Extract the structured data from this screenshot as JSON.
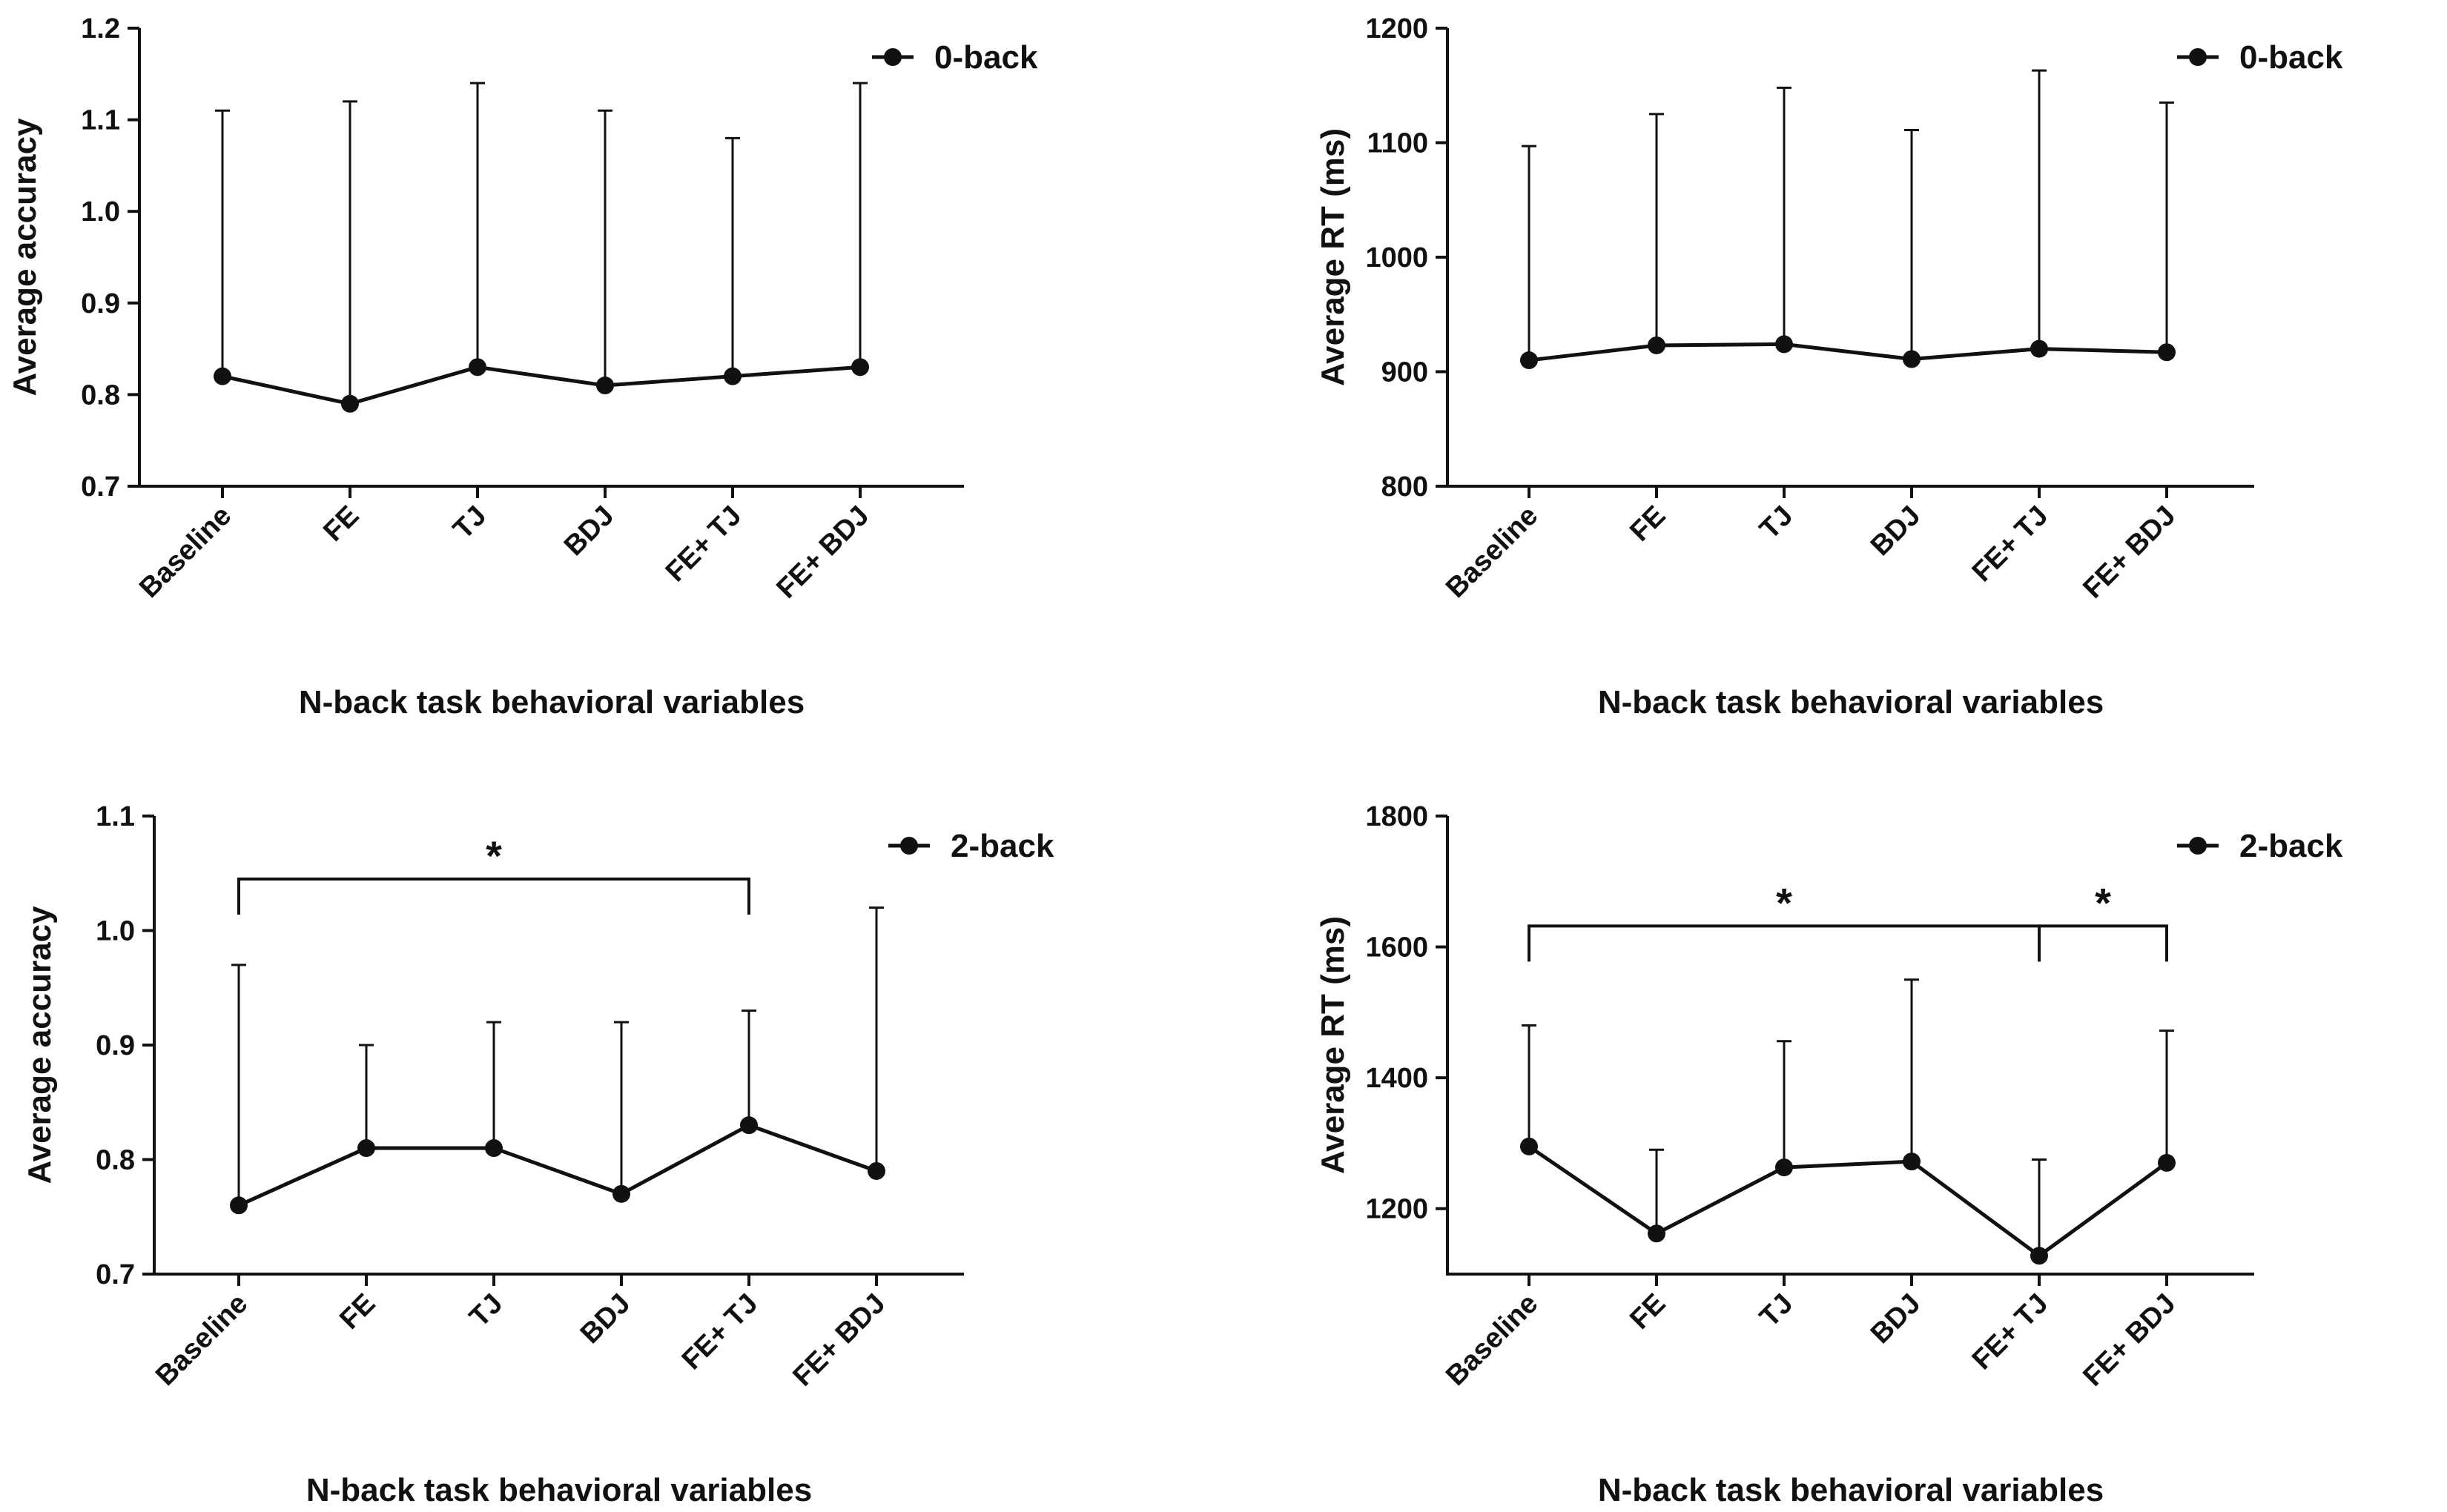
{
  "chart_data": [
    {
      "type": "line",
      "title": "",
      "xlabel": "N-back task behavioral variables",
      "ylabel": "Average accuracy",
      "categories": [
        "Baseline",
        "FE",
        "TJ",
        "BDJ",
        "FE+ TJ",
        "FE+ BDJ"
      ],
      "ylim": [
        0.7,
        1.2
      ],
      "yticks": [
        "0.7",
        "0.8",
        "0.9",
        "1.0",
        "1.1",
        "1.2"
      ],
      "legend_position": "top-right",
      "series": [
        {
          "name": "0-back",
          "values": [
            0.82,
            0.79,
            0.83,
            0.81,
            0.82,
            0.83
          ],
          "error_upper": [
            1.11,
            1.12,
            1.14,
            1.11,
            1.08,
            1.14
          ]
        }
      ],
      "significance": []
    },
    {
      "type": "line",
      "title": "",
      "xlabel": "N-back task behavioral variables",
      "ylabel": "Average RT (ms)",
      "categories": [
        "Baseline",
        "FE",
        "TJ",
        "BDJ",
        "FE+ TJ",
        "FE+ BDJ"
      ],
      "ylim": [
        800,
        1200
      ],
      "yticks": [
        "800",
        "900",
        "1000",
        "1100",
        "1200"
      ],
      "legend_position": "top-right",
      "series": [
        {
          "name": "0-back",
          "values": [
            910,
            923,
            924,
            911,
            920,
            917
          ],
          "error_upper": [
            1097,
            1125,
            1148,
            1111,
            1163,
            1135
          ]
        }
      ],
      "significance": []
    },
    {
      "type": "line",
      "title": "",
      "xlabel": "N-back task behavioral variables",
      "ylabel": "Average accuracy",
      "categories": [
        "Baseline",
        "FE",
        "TJ",
        "BDJ",
        "FE+ TJ",
        "FE+ BDJ"
      ],
      "ylim": [
        0.7,
        1.1
      ],
      "yticks": [
        "0.7",
        "0.8",
        "0.9",
        "1.0",
        "1.1"
      ],
      "legend_position": "top-right",
      "series": [
        {
          "name": "2-back",
          "values": [
            0.76,
            0.81,
            0.81,
            0.77,
            0.83,
            0.79
          ],
          "error_upper": [
            0.97,
            0.9,
            0.92,
            0.92,
            0.93,
            1.02
          ]
        }
      ],
      "significance": [
        {
          "from": "Baseline",
          "to": "FE+ TJ",
          "level": 1.045,
          "label": "*"
        }
      ]
    },
    {
      "type": "line",
      "title": "",
      "xlabel": "N-back task behavioral variables",
      "ylabel": "Average RT (ms)",
      "categories": [
        "Baseline",
        "FE",
        "TJ",
        "BDJ",
        "FE+ TJ",
        "FE+ BDJ"
      ],
      "ylim": [
        1100,
        1800
      ],
      "yticks": [
        "1200",
        "1400",
        "1600",
        "1800"
      ],
      "legend_position": "top-right",
      "series": [
        {
          "name": "2-back",
          "values": [
            1295,
            1162,
            1263,
            1272,
            1128,
            1270
          ],
          "error_upper": [
            1480,
            1290,
            1456,
            1550,
            1275,
            1472
          ]
        }
      ],
      "significance": [
        {
          "from": "Baseline",
          "to": "FE+ TJ",
          "level": 1632,
          "label": "*"
        },
        {
          "from": "FE+ TJ",
          "to": "FE+ BDJ",
          "level": 1632,
          "label": "*"
        }
      ]
    }
  ]
}
